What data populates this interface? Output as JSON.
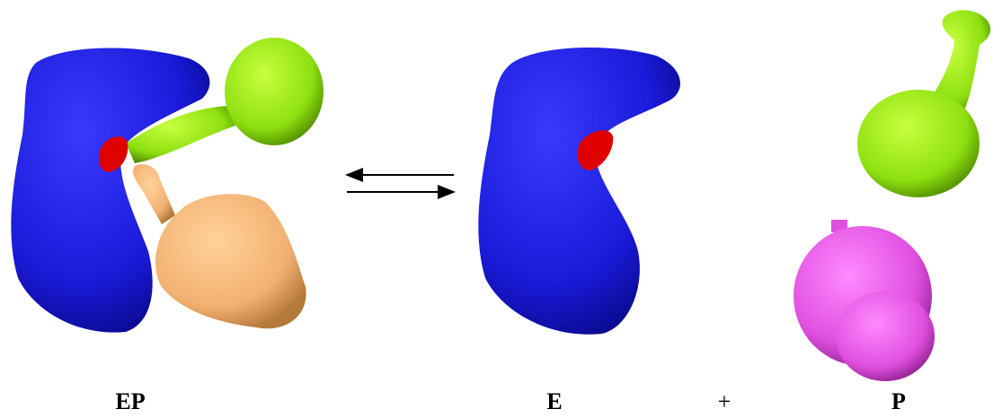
{
  "labels": {
    "complex": "EP",
    "enzyme": "E",
    "plus": "+",
    "product": "P"
  }
}
